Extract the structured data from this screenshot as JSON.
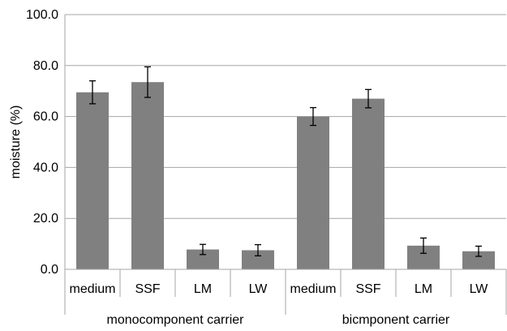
{
  "chart_data": {
    "type": "bar",
    "ylabel": "moisture (%)",
    "xlabel": "",
    "ylim": [
      0,
      100
    ],
    "yticks": [
      "0.0",
      "20.0",
      "40.0",
      "60.0",
      "80.0",
      "100.0"
    ],
    "ytick_values": [
      0,
      20,
      40,
      60,
      80,
      100
    ],
    "grid": "horizontal",
    "bar_color": "#808080",
    "groups": [
      {
        "label": "monocomponent carrier",
        "categories": [
          "medium",
          "SSF",
          "LM",
          "LW"
        ]
      },
      {
        "label": "bicmponent carrier",
        "categories": [
          "medium",
          "SSF",
          "LM",
          "LW"
        ]
      }
    ],
    "categories": [
      "medium",
      "SSF",
      "LM",
      "LW",
      "medium",
      "SSF",
      "LM",
      "LW"
    ],
    "values": [
      69.5,
      73.5,
      7.8,
      7.5,
      60.0,
      67.0,
      9.3,
      7.1
    ],
    "errors": [
      4.5,
      6.0,
      2.0,
      2.2,
      3.5,
      3.6,
      3.0,
      2.0
    ]
  }
}
